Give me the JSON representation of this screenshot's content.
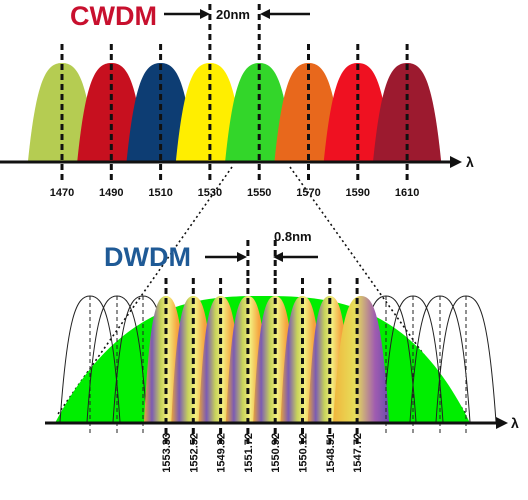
{
  "cwdm": {
    "title": "CWDM",
    "spacing_label": "20nm",
    "axis_symbol": "λ",
    "channels": [
      {
        "wavelength": "1470",
        "color": "#b5cc52"
      },
      {
        "wavelength": "1490",
        "color": "#c7101f"
      },
      {
        "wavelength": "1510",
        "color": "#0d3d73"
      },
      {
        "wavelength": "1530",
        "color": "#ffee00"
      },
      {
        "wavelength": "1550",
        "color": "#33d62a"
      },
      {
        "wavelength": "1570",
        "color": "#e8681c"
      },
      {
        "wavelength": "1590",
        "color": "#ef1121"
      },
      {
        "wavelength": "1610",
        "color": "#9c1a2f"
      }
    ]
  },
  "dwdm": {
    "title": "DWDM",
    "spacing_label": "0.8nm",
    "axis_symbol": "λ",
    "envelope_color": "#00ee00",
    "channels": [
      "1553.33",
      "1552.52",
      "1549.32",
      "1551.72",
      "1550.92",
      "1550.12",
      "1548.51",
      "1547.72"
    ]
  }
}
